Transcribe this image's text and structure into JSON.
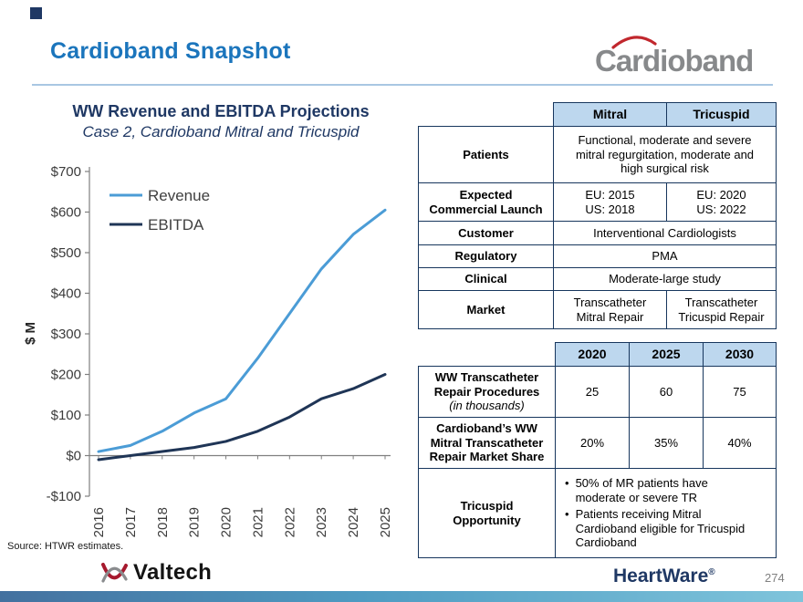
{
  "page": {
    "title": "Cardioband Snapshot",
    "page_number": "274",
    "source_note": "Source: HTWR estimates."
  },
  "logos": {
    "cardioband": "Cardioband",
    "valtech": "Valtech",
    "heartware": "HeartWare",
    "heartware_reg": "®"
  },
  "chart": {
    "title": "WW Revenue and EBITDA Projections",
    "subtitle": "Case 2, Cardioband Mitral and Tricuspid"
  },
  "chart_data": {
    "type": "line",
    "title": "WW Revenue and EBITDA Projections",
    "subtitle": "Case 2, Cardioband Mitral and Tricuspid",
    "x": [
      2016,
      2017,
      2018,
      2019,
      2020,
      2021,
      2022,
      2023,
      2024,
      2025
    ],
    "series": [
      {
        "name": "Revenue",
        "color": "#4B9CD6",
        "values": [
          10,
          25,
          60,
          105,
          140,
          240,
          350,
          460,
          545,
          605
        ]
      },
      {
        "name": "EBITDA",
        "color": "#1F3556",
        "values": [
          -10,
          0,
          10,
          20,
          35,
          60,
          95,
          140,
          165,
          200
        ]
      }
    ],
    "xlabel": "",
    "ylabel": "$ M",
    "ylim": [
      -100,
      700
    ],
    "ytick_step": 100,
    "grid": false,
    "legend_position": "top-left"
  },
  "mitral_table": {
    "headers": {
      "mitral": "Mitral",
      "tricuspid": "Tricuspid"
    },
    "rows": {
      "patients": {
        "label": "Patients",
        "value": "Functional, moderate and severe\nmitral regurgitation, moderate and\nhigh surgical risk"
      },
      "launch": {
        "label": "Expected\nCommercial Launch",
        "mitral": "EU: 2015\nUS: 2018",
        "tricuspid": "EU: 2020\nUS: 2022"
      },
      "customer": {
        "label": "Customer",
        "value": "Interventional Cardiologists"
      },
      "regulatory": {
        "label": "Regulatory",
        "value": "PMA"
      },
      "clinical": {
        "label": "Clinical",
        "value": "Moderate-large study"
      },
      "market": {
        "label": "Market",
        "mitral": "Transcatheter\nMitral Repair",
        "tricuspid": "Transcatheter\nTricuspid Repair"
      }
    }
  },
  "projection_table": {
    "headers": {
      "c1": "2020",
      "c2": "2025",
      "c3": "2030"
    },
    "rows": {
      "procedures": {
        "label": "WW Transcatheter\nRepair Procedures",
        "sublabel": "(in thousands)",
        "values": [
          "25",
          "60",
          "75"
        ]
      },
      "share": {
        "label": "Cardioband’s  WW\nMitral Transcatheter\nRepair Market Share",
        "values": [
          "20%",
          "35%",
          "40%"
        ]
      },
      "tricuspid": {
        "label": "Tricuspid\nOpportunity",
        "bullets": [
          "50% of MR patients have\nmoderate or severe TR",
          "Patients receiving Mitral\nCardioband eligible for Tricuspid\nCardioband"
        ]
      }
    }
  }
}
